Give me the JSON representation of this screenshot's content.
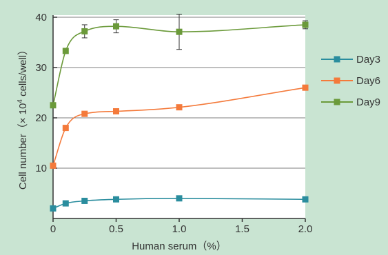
{
  "colors": {
    "background": "#c9e4d2",
    "plot_background": "#ffffff",
    "axis": "#333333",
    "grid": "#7f7f7f",
    "error_bar": "#333333"
  },
  "chart_data": {
    "type": "line",
    "xlabel": "Human serum（%）",
    "ylabel_prefix": "Cell number（× 10",
    "ylabel_superscript": "4",
    "ylabel_suffix": " cells/well）",
    "xlim": [
      0,
      2.0
    ],
    "ylim": [
      0,
      40
    ],
    "xticks": [
      0,
      0.5,
      1.0,
      1.5,
      2.0
    ],
    "xtick_labels": [
      "0",
      "0.5",
      "1.0",
      "1.5",
      "2.0"
    ],
    "yticks": [
      10,
      20,
      30,
      40
    ],
    "ytick_labels": [
      "10",
      "20",
      "30",
      "40"
    ],
    "grid": "horizontal",
    "legend_position": "right",
    "x": [
      0,
      0.1,
      0.25,
      0.5,
      1.0,
      2.0
    ],
    "series": [
      {
        "name": "Day3",
        "color": "#2a8d9e",
        "marker": "square",
        "values": [
          2.0,
          3.0,
          3.5,
          3.8,
          4.0,
          3.8
        ],
        "errors": [
          0,
          0,
          0,
          0,
          0,
          0
        ]
      },
      {
        "name": "Day6",
        "color": "#f47a3b",
        "marker": "square",
        "values": [
          10.5,
          18.0,
          20.8,
          21.3,
          22.1,
          26.0
        ],
        "errors": [
          0,
          0,
          0,
          0,
          0,
          0
        ]
      },
      {
        "name": "Day9",
        "color": "#6b9a3a",
        "marker": "square",
        "values": [
          22.5,
          33.3,
          37.2,
          38.2,
          37.1,
          38.5
        ],
        "errors": [
          0,
          0,
          1.3,
          1.3,
          3.5,
          0.8
        ]
      }
    ]
  }
}
